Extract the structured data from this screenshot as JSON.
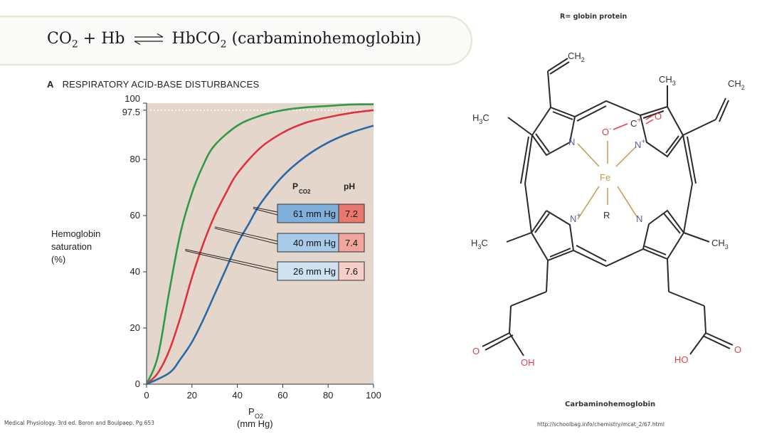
{
  "equation": {
    "reactant1": "CO",
    "reactant1_sub": "2",
    "plus": "+",
    "reactant2": "Hb",
    "product": "HbCO",
    "product_sub": "2",
    "product_name": "(carbaminohemoglobin)"
  },
  "panel": {
    "letter": "A",
    "title": "RESPIRATORY ACID-BASE DISTURBANCES"
  },
  "ylabel_lines": [
    "Hemoglobin",
    "saturation",
    "(%)"
  ],
  "xlabel": {
    "main": "P",
    "sub": "O2",
    "unit": "(mm Hg)"
  },
  "legend": {
    "pco2_header_main": "P",
    "pco2_header_sub": "CO2",
    "ph_header": "pH",
    "rows": [
      {
        "pco2": "61 mm Hg",
        "ph": "7.2"
      },
      {
        "pco2": "40 mm Hg",
        "ph": "7.4"
      },
      {
        "pco2": "26 mm Hg",
        "ph": "7.6"
      }
    ]
  },
  "colors": {
    "plot_bg": "#e5d6cb",
    "green_curve": "#2e9a4a",
    "red_curve": "#e0313f",
    "blue_curve": "#2a6aa6",
    "legend_blue_dark": "#7fb0dc",
    "legend_blue_mid": "#a8cbea",
    "legend_blue_light": "#cfe2f4",
    "ph_dark": "#e9776d",
    "ph_mid": "#f2a59c",
    "ph_light": "#f8cfc8",
    "nitrogen": "#5a5fa8",
    "oxygen": "#e0414a",
    "iron": "#c79a4a"
  },
  "chart_data": {
    "type": "line",
    "title": "RESPIRATORY ACID-BASE DISTURBANCES",
    "xlabel": "PO2 (mm Hg)",
    "ylabel": "Hemoglobin saturation (%)",
    "xlim": [
      0,
      100
    ],
    "ylim": [
      0,
      100
    ],
    "x_ticks": [
      0,
      20,
      40,
      60,
      80,
      100
    ],
    "y_ticks": [
      "0",
      "20",
      "40",
      "60",
      "80",
      "97.5",
      "100"
    ],
    "reference_line_y": 97.5,
    "series": [
      {
        "color": "green",
        "legend": "26 mm Hg / pH 7.6",
        "x": [
          0,
          5,
          10,
          15,
          20,
          25,
          30,
          40,
          50,
          60,
          70,
          80,
          90,
          100
        ],
        "y": [
          0,
          10,
          33,
          54,
          68,
          78,
          85,
          92,
          95.5,
          97.5,
          98.5,
          99,
          99.5,
          99.6
        ]
      },
      {
        "color": "red",
        "legend": "40 mm Hg / pH 7.4",
        "x": [
          0,
          5,
          10,
          15,
          20,
          25,
          30,
          35,
          40,
          50,
          60,
          70,
          80,
          90,
          100
        ],
        "y": [
          0,
          4,
          12,
          24,
          38,
          50,
          60,
          68,
          75,
          84,
          89.5,
          93,
          95,
          96.5,
          97.5
        ]
      },
      {
        "color": "blue",
        "legend": "61 mm Hg / pH 7.2",
        "x": [
          0,
          10,
          15,
          20,
          25,
          30,
          35,
          40,
          45,
          50,
          60,
          70,
          80,
          90,
          100
        ],
        "y": [
          0,
          4,
          9,
          15,
          23,
          32,
          41,
          50,
          57,
          64,
          74,
          81,
          86,
          89.5,
          92
        ]
      }
    ]
  },
  "molecule": {
    "title": "R= globin protein",
    "caption": "Carbaminohemoglobin",
    "labels": {
      "ch2_top": "CH",
      "ch2_top_sub": "2",
      "ch3_top": "CH",
      "ch3_top_sub": "3",
      "ch2_right": "CH",
      "ch2_right_sub": "2",
      "h3c_left_top": "H",
      "h3c_left_top_sub": "3",
      "h3c_left_top_c": "C",
      "h3c_left_bottom": "H",
      "h3c_left_bottom_sub": "3",
      "h3c_left_bottom_c": "C",
      "ch3_right": "CH",
      "ch3_right_sub": "3",
      "n_top_left": "N",
      "n_top_right": "N",
      "n_top_right_sup": "+",
      "n_bottom_left": "N",
      "n_bottom_left_sup": "+",
      "n_bottom_right": "N",
      "fe": "Fe",
      "r": "R",
      "o_minus": "O",
      "o_minus_sup": "-",
      "c_plus": "C",
      "c_plus_sup": "+",
      "o_carbonyl": "O",
      "o_acid_left": "O",
      "oh_left": "OH",
      "o_acid_right": "O",
      "ho_right": "HO"
    }
  },
  "footers": {
    "left": "Medical Physiology. 3rd ed. Boron and Boulpaep. Pg 653",
    "right": "http://schoolbag.info/chemistry/mcat_2/67.html"
  }
}
